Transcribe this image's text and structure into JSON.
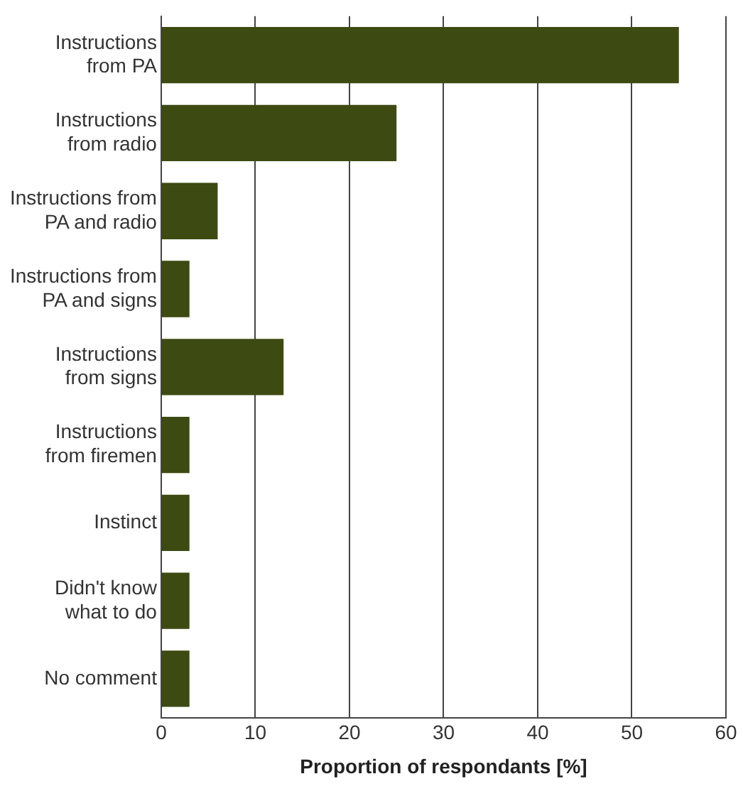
{
  "chart_data": {
    "type": "bar",
    "orientation": "horizontal",
    "xlabel": "Proportion of respondants [%]",
    "categories": [
      "Instructions\nfrom PA",
      "Instructions\nfrom radio",
      "Instructions from\nPA and radio",
      "Instructions from\nPA and signs",
      "Instructions\nfrom signs",
      "Instructions\nfrom firemen",
      "Instinct",
      "Didn't know\nwhat to do",
      "No comment"
    ],
    "values": [
      55,
      25,
      6,
      3,
      13,
      3,
      3,
      3,
      3
    ],
    "color": "#3d4a12",
    "xlim": [
      0,
      60
    ],
    "xticks": [
      0,
      10,
      20,
      30,
      40,
      50,
      60
    ],
    "grid": "x",
    "legend": false
  }
}
